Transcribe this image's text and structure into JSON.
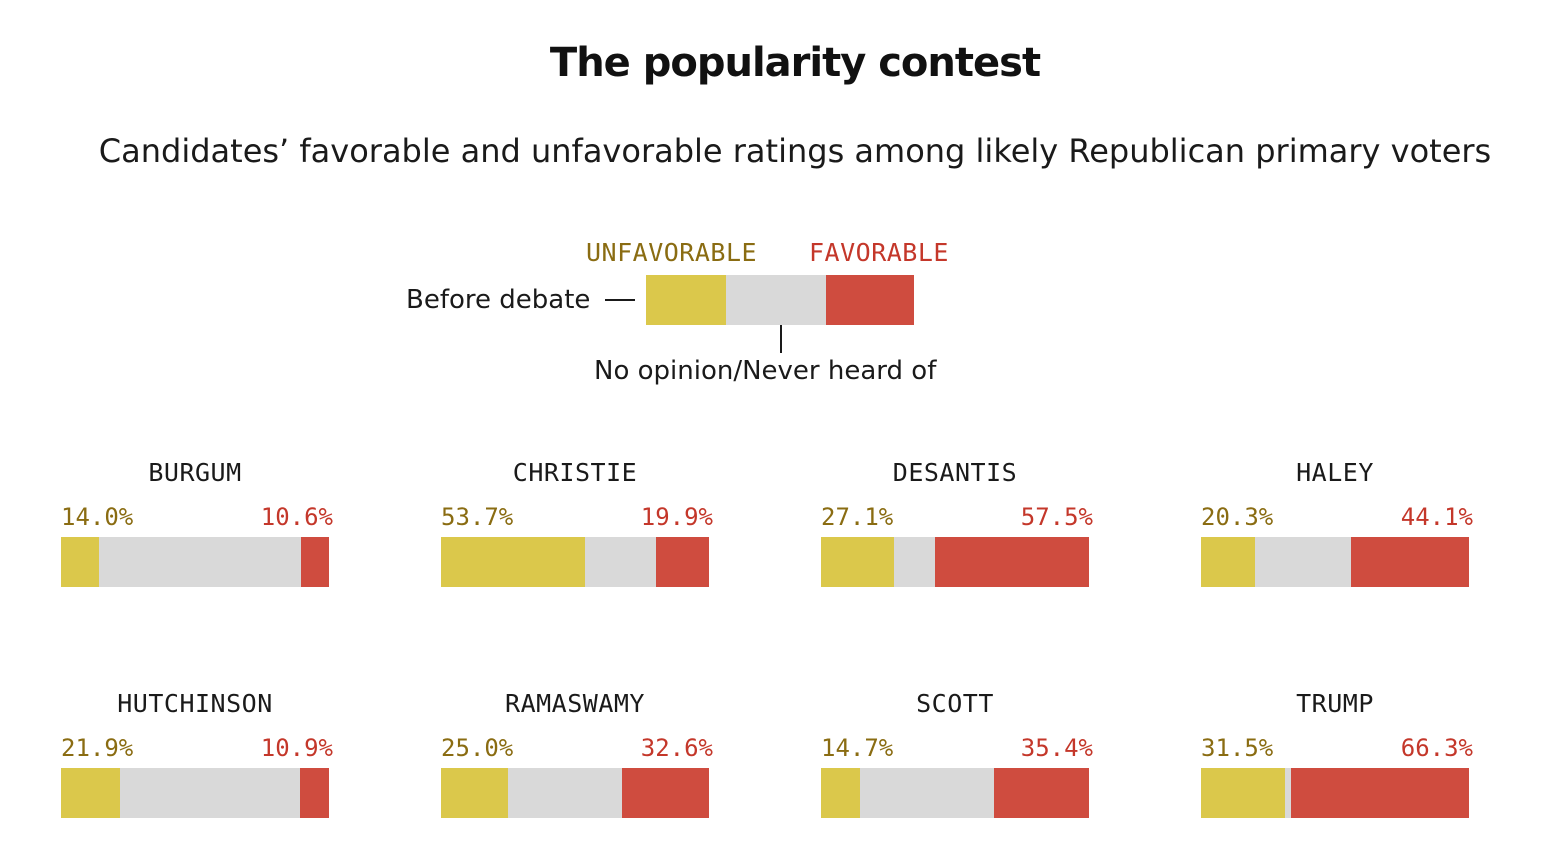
{
  "chart_data": {
    "type": "bar",
    "title": "The popularity contest",
    "subtitle": "Candidates’ favorable and unfavorable ratings among likely Republican primary voters",
    "legend": {
      "unfavorable_label": "UNFAVORABLE",
      "favorable_label": "FAVORABLE",
      "before_label": "Before debate",
      "no_opinion_label": "No opinion/Never heard of",
      "example": {
        "unfavorable": 30,
        "favorable": 33
      }
    },
    "colors": {
      "unfavorable": "#dbc84b",
      "no_opinion": "#d9d9d9",
      "favorable": "#cf4c3f"
    },
    "categories": [
      "BURGUM",
      "CHRISTIE",
      "DESANTIS",
      "HALEY",
      "HUTCHINSON",
      "RAMASWAMY",
      "SCOTT",
      "TRUMP"
    ],
    "series": [
      {
        "name": "Unfavorable",
        "values": [
          14.0,
          53.7,
          27.1,
          20.3,
          21.9,
          25.0,
          14.7,
          31.5
        ],
        "labels": [
          "14.0%",
          "53.7%",
          "27.1%",
          "20.3%",
          "21.9%",
          "25.0%",
          "14.7%",
          "31.5%"
        ]
      },
      {
        "name": "Favorable",
        "values": [
          10.6,
          19.9,
          57.5,
          44.1,
          10.9,
          32.6,
          35.4,
          66.3
        ],
        "labels": [
          "10.6%",
          "19.9%",
          "57.5%",
          "44.1%",
          "10.9%",
          "32.6%",
          "35.4%",
          "66.3%"
        ]
      }
    ]
  }
}
